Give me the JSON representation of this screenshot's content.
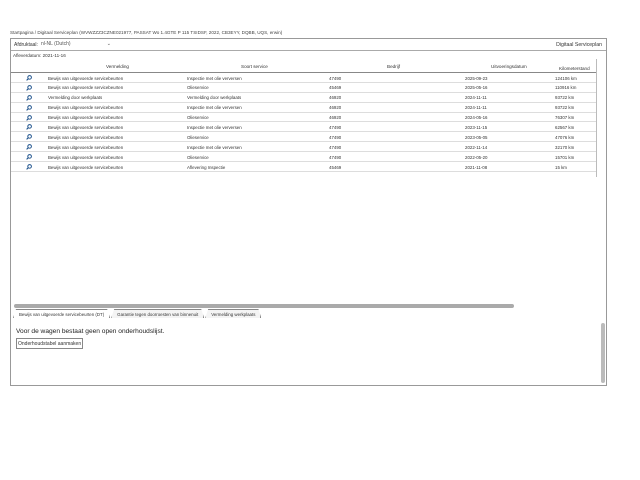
{
  "breadcrumb": "Startpagina / Digitaal Serviceplan (WVWZZZ3CZNE021977, PASSAT Wo 1.4GTE P 115 TSIDSF, 2022, CB3EYY, DQBB, UQS, erwin)",
  "language": {
    "label": "Afdruktaal:",
    "value": "nl-NL (Dutch)"
  },
  "title": "Digitaal Serviceplan",
  "delivery_date": "Afleverdatum: 2021-11-16",
  "table": {
    "columns": [
      "Vermelding",
      "Soort service",
      "Bedrijf",
      "Uitvoeringsdatum",
      "Kilometerstand"
    ],
    "rows": [
      [
        "Bewijs van uitgevoerde servicebeurten",
        "Inspectie met olie verversen",
        "47490",
        "2025-09-23",
        "124106 km"
      ],
      [
        "Bewijs van uitgevoerde servicebeurten",
        "Olieservice",
        "45469",
        "2025-05-16",
        "110916 km"
      ],
      [
        "Vermelding door werkplaats",
        "Vermelding door werkplaats",
        "46920",
        "2024-11-11",
        "93722 km"
      ],
      [
        "Bewijs van uitgevoerde servicebeurten",
        "Inspectie met olie verversen",
        "46920",
        "2024-11-11",
        "93722 km"
      ],
      [
        "Bewijs van uitgevoerde servicebeurten",
        "Olieservice",
        "46920",
        "2024-05-16",
        "76307 km"
      ],
      [
        "Bewijs van uitgevoerde servicebeurten",
        "Inspectie met olie verversen",
        "47490",
        "2023-11-15",
        "62567 km"
      ],
      [
        "Bewijs van uitgevoerde servicebeurten",
        "Olieservice",
        "47490",
        "2023-05-05",
        "47076 km"
      ],
      [
        "Bewijs van uitgevoerde servicebeurten",
        "Inspectie met olie verversen",
        "47490",
        "2022-11-14",
        "32170 km"
      ],
      [
        "Bewijs van uitgevoerde servicebeurten",
        "Olieservice",
        "47490",
        "2022-05-20",
        "15701 km"
      ],
      [
        "Bewijs van uitgevoerde servicebeurten",
        "Aflevering Inspectie",
        "45469",
        "2021-11-08",
        "15 km"
      ]
    ]
  },
  "tabs": [
    "Bewijs van uitgevoerde servicebeurten (DT)",
    "Garantie tegen doorroesten van binnenuit",
    "Vermelding werkplaats"
  ],
  "message": "Voor de wagen bestaat geen open onderhoudslijst.",
  "create_button": "Onderhoudstabel aanmaken"
}
